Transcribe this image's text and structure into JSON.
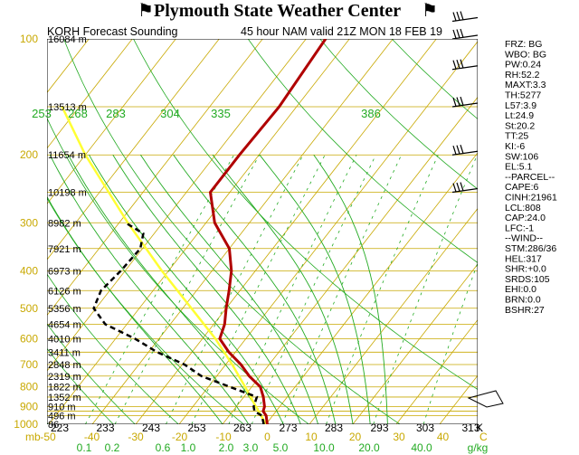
{
  "header": {
    "title": "Plymouth State Weather Center",
    "left_flag_icon": "flag-icon",
    "right_flag_icon": "flag-icon"
  },
  "subheader": {
    "station": "KORH Forecast Sounding",
    "model": "45 hour NAM valid 21Z MON 18 FEB 19"
  },
  "colors": {
    "temperature": "#b00000",
    "dewpoint": "#000000",
    "parcel": "#ffff33",
    "isotherms_isobars": "#c8a800",
    "adiabats": "#22aa22",
    "mixing_ratio": "#22aa22",
    "wind_barbs": "#000000"
  },
  "chart_data": {
    "type": "skew-t",
    "pressure_ticks": [
      "100",
      "200",
      "300",
      "400",
      "500",
      "600",
      "700",
      "800",
      "900",
      "1000"
    ],
    "pressure_unit": "mb",
    "height_labels": [
      "16084 m",
      "13513 m",
      "11654 m",
      "10198 m",
      "8982 m",
      "7921 m",
      "6973 m",
      "6126 m",
      "5356 m",
      "4654 m",
      "4010 m",
      "3411 m",
      "2848 m",
      "2319 m",
      "1822 m",
      "1352 m",
      "910 m",
      "496 m",
      "86"
    ],
    "temperature_ticks": [
      "-50",
      "-40",
      "-30",
      "-20",
      "-10",
      "0",
      "10",
      "20",
      "30",
      "40"
    ],
    "temperature_unit": "C",
    "kelvin_ticks": [
      "223",
      "233",
      "243",
      "253",
      "263",
      "273",
      "283",
      "293",
      "303",
      "313"
    ],
    "kelvin_unit": "K",
    "theta_labels": [
      "253",
      "268",
      "283",
      "304",
      "335",
      "386"
    ],
    "mixing_ratio_ticks": [
      "0.1",
      "0.2",
      "0.6",
      "1.0",
      "2.0",
      "3.0",
      "5.0",
      "10.0",
      "20.0",
      "40.0"
    ],
    "mixing_ratio_unit": "g/kg",
    "temperature_profile": [
      {
        "p": 1000,
        "t": 0.3
      },
      {
        "p": 950,
        "t": -1.5
      },
      {
        "p": 925,
        "t": -3.0
      },
      {
        "p": 900,
        "t": -3.5
      },
      {
        "p": 850,
        "t": -5.5
      },
      {
        "p": 800,
        "t": -8.0
      },
      {
        "p": 750,
        "t": -12.5
      },
      {
        "p": 700,
        "t": -16.5
      },
      {
        "p": 650,
        "t": -21.5
      },
      {
        "p": 600,
        "t": -26.0
      },
      {
        "p": 550,
        "t": -27.5
      },
      {
        "p": 500,
        "t": -30.0
      },
      {
        "p": 450,
        "t": -32.5
      },
      {
        "p": 400,
        "t": -35.5
      },
      {
        "p": 350,
        "t": -40.0
      },
      {
        "p": 300,
        "t": -48.0
      },
      {
        "p": 250,
        "t": -54.5
      },
      {
        "p": 200,
        "t": -54.5
      },
      {
        "p": 150,
        "t": -54.0
      },
      {
        "p": 100,
        "t": -55.5
      }
    ],
    "dewpoint_profile": [
      {
        "p": 1000,
        "t": -0.5
      },
      {
        "p": 950,
        "t": -2.5
      },
      {
        "p": 925,
        "t": -5.0
      },
      {
        "p": 900,
        "t": -6.0
      },
      {
        "p": 850,
        "t": -7.0
      },
      {
        "p": 800,
        "t": -15.0
      },
      {
        "p": 750,
        "t": -23.5
      },
      {
        "p": 700,
        "t": -29.5
      },
      {
        "p": 650,
        "t": -38.0
      },
      {
        "p": 600,
        "t": -45.5
      },
      {
        "p": 550,
        "t": -55.0
      },
      {
        "p": 500,
        "t": -60.5
      },
      {
        "p": 450,
        "t": -62.0
      },
      {
        "p": 400,
        "t": -61.0
      },
      {
        "p": 350,
        "t": -60.5
      },
      {
        "p": 320,
        "t": -62.5
      },
      {
        "p": 300,
        "t": -68.5
      }
    ],
    "parcel_profile": [
      {
        "p": 1000,
        "t": 0.0
      },
      {
        "p": 900,
        "t": -5.5
      },
      {
        "p": 800,
        "t": -11.5
      },
      {
        "p": 700,
        "t": -18.5
      },
      {
        "p": 600,
        "t": -27.0
      },
      {
        "p": 500,
        "t": -38.0
      },
      {
        "p": 400,
        "t": -51.5
      },
      {
        "p": 300,
        "t": -68.0
      },
      {
        "p": 200,
        "t": -90.0
      },
      {
        "p": 150,
        "t": -104.0
      }
    ],
    "wind_barb_levels": [
      "250",
      "200",
      "150",
      "120",
      "100",
      "90",
      "70",
      "60",
      "50",
      "45",
      "40",
      "35",
      "30",
      "25",
      "20",
      "15",
      "12"
    ],
    "skew_lines": "diagonal isotherms, dry adiabats, moist adiabats, mixing ratio lines"
  },
  "indices": [
    "FRZ: BG",
    "WBO: BG",
    "PW:0.24",
    "RH:52.2",
    "MAXT:3.3",
    "TH:5277",
    "L57:3.9",
    "Lt:24.9",
    "St:20.2",
    "TT:25",
    "KI:-6",
    "SW:106",
    "EL:5.1",
    "--PARCEL--",
    "CAPE:6",
    "CINH:21961",
    "LCL:808",
    "CAP:24.0",
    "LFC:-1",
    "--WIND--",
    "STM:286/36",
    "HEL:317",
    "SHR:+0.0",
    "SRDS:105",
    "EHI:0.0",
    "BRN:0.0",
    "BSHR:27"
  ]
}
